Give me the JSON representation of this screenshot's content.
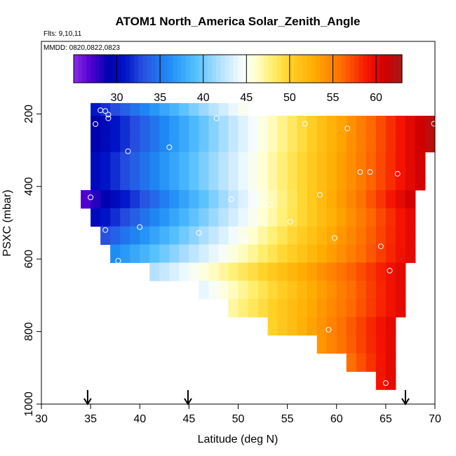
{
  "chart_data": {
    "type": "heatmap",
    "title": "ATOM1 North_America Solar_Zenith_Angle",
    "subtitle_flights": "Flts: 9,10,11",
    "subtitle_dates": "MMDD: 0820,0822,0823",
    "xlabel": "Latitude (deg N)",
    "ylabel": "PSXC (mbar)",
    "xlim": [
      30,
      70
    ],
    "ylim": [
      1000,
      0
    ],
    "x_ticks": [
      "30",
      "35",
      "40",
      "45",
      "50",
      "55",
      "60",
      "65",
      "70"
    ],
    "y_ticks": [
      "200",
      "400",
      "600",
      "800",
      "1000"
    ],
    "colorbar": {
      "range": [
        25,
        63
      ],
      "tick_labels": [
        "30",
        "35",
        "40",
        "45",
        "50",
        "55",
        "60"
      ]
    },
    "cell_width_deg": 1,
    "rows": [
      {
        "p_top": 170,
        "p_bottom": 205,
        "lat_start": 35,
        "lat_end": 51,
        "v_start": 31,
        "v_end": 45
      },
      {
        "p_top": 205,
        "p_bottom": 255,
        "lat_start": 35,
        "lat_end": 70,
        "v_start": 29,
        "v_end": 62
      },
      {
        "p_top": 255,
        "p_bottom": 305,
        "lat_start": 35,
        "lat_end": 70,
        "v_start": 29,
        "v_end": 62
      },
      {
        "p_top": 305,
        "p_bottom": 350,
        "lat_start": 35,
        "lat_end": 69,
        "v_start": 30,
        "v_end": 61
      },
      {
        "p_top": 350,
        "p_bottom": 410,
        "lat_start": 35,
        "lat_end": 69,
        "v_start": 30,
        "v_end": 61
      },
      {
        "p_top": 410,
        "p_bottom": 460,
        "lat_start": 34,
        "lat_end": 68,
        "v_start": 27,
        "v_end": 61
      },
      {
        "p_top": 460,
        "p_bottom": 510,
        "lat_start": 35,
        "lat_end": 68,
        "v_start": 30,
        "v_end": 60
      },
      {
        "p_top": 510,
        "p_bottom": 560,
        "lat_start": 36,
        "lat_end": 68,
        "v_start": 33,
        "v_end": 60
      },
      {
        "p_top": 560,
        "p_bottom": 610,
        "lat_start": 37,
        "lat_end": 68,
        "v_start": 36,
        "v_end": 60
      },
      {
        "p_top": 610,
        "p_bottom": 660,
        "lat_start": 41,
        "lat_end": 67,
        "v_start": 42,
        "v_end": 60
      },
      {
        "p_top": 660,
        "p_bottom": 710,
        "lat_start": 46,
        "lat_end": 67,
        "v_start": 44,
        "v_end": 60
      },
      {
        "p_top": 710,
        "p_bottom": 760,
        "lat_start": 49,
        "lat_end": 67,
        "v_start": 47,
        "v_end": 60
      },
      {
        "p_top": 760,
        "p_bottom": 810,
        "lat_start": 53,
        "lat_end": 66,
        "v_start": 50,
        "v_end": 60
      },
      {
        "p_top": 810,
        "p_bottom": 860,
        "lat_start": 58,
        "lat_end": 66,
        "v_start": 54,
        "v_end": 60
      },
      {
        "p_top": 860,
        "p_bottom": 910,
        "lat_start": 61,
        "lat_end": 66,
        "v_start": 56,
        "v_end": 60
      },
      {
        "p_top": 910,
        "p_bottom": 960,
        "lat_start": 64,
        "lat_end": 66,
        "v_start": 59,
        "v_end": 60
      }
    ],
    "points": [
      {
        "lat": 35.0,
        "p": 430
      },
      {
        "lat": 35.5,
        "p": 228
      },
      {
        "lat": 36.0,
        "p": 190
      },
      {
        "lat": 36.5,
        "p": 192
      },
      {
        "lat": 36.8,
        "p": 202
      },
      {
        "lat": 36.8,
        "p": 212
      },
      {
        "lat": 36.5,
        "p": 520
      },
      {
        "lat": 37.8,
        "p": 605
      },
      {
        "lat": 38.8,
        "p": 303
      },
      {
        "lat": 40.0,
        "p": 512
      },
      {
        "lat": 43.0,
        "p": 292
      },
      {
        "lat": 46.0,
        "p": 528
      },
      {
        "lat": 47.8,
        "p": 212
      },
      {
        "lat": 49.3,
        "p": 435
      },
      {
        "lat": 50.8,
        "p": 545
      },
      {
        "lat": 53.2,
        "p": 450
      },
      {
        "lat": 55.3,
        "p": 497
      },
      {
        "lat": 56.8,
        "p": 227
      },
      {
        "lat": 58.3,
        "p": 423
      },
      {
        "lat": 59.8,
        "p": 542
      },
      {
        "lat": 59.2,
        "p": 795
      },
      {
        "lat": 61.1,
        "p": 240
      },
      {
        "lat": 62.4,
        "p": 360
      },
      {
        "lat": 63.4,
        "p": 360
      },
      {
        "lat": 64.5,
        "p": 565
      },
      {
        "lat": 65.0,
        "p": 942
      },
      {
        "lat": 65.4,
        "p": 632
      },
      {
        "lat": 66.2,
        "p": 365
      },
      {
        "lat": 69.9,
        "p": 227
      }
    ],
    "flight_arrows_lat": [
      34.7,
      44.9,
      67.0
    ]
  }
}
